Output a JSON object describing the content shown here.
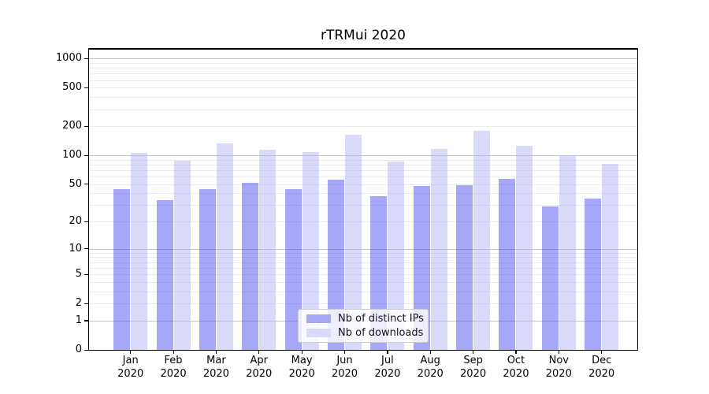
{
  "chart_data": {
    "type": "bar",
    "title": "rTRMui 2020",
    "categories": [
      "Jan 2020",
      "Feb 2020",
      "Mar 2020",
      "Apr 2020",
      "May 2020",
      "Jun 2020",
      "Jul 2020",
      "Aug 2020",
      "Sep 2020",
      "Oct 2020",
      "Nov 2020",
      "Dec 2020"
    ],
    "x_tick_month": [
      "Jan",
      "Feb",
      "Mar",
      "Apr",
      "May",
      "Jun",
      "Jul",
      "Aug",
      "Sep",
      "Oct",
      "Nov",
      "Dec"
    ],
    "x_tick_year": "2020",
    "series": [
      {
        "name": "Nb of distinct IPs",
        "color_fill": "rgba(80,80,245,0.5)",
        "color_legend": "#a7a7fa",
        "values": [
          44,
          34,
          44,
          52,
          44,
          56,
          37,
          48,
          49,
          57,
          29,
          35
        ]
      },
      {
        "name": "Nb of downloads",
        "color_fill": "rgba(180,180,245,0.5)",
        "color_legend": "#d9d9fa",
        "values": [
          106,
          88,
          133,
          115,
          108,
          162,
          86,
          116,
          179,
          126,
          98,
          81
        ]
      }
    ],
    "y_scale": "log1p",
    "ylim": [
      0,
      1260
    ],
    "y_ticks": [
      0,
      1,
      2,
      5,
      10,
      20,
      50,
      100,
      200,
      500,
      1000
    ],
    "y_gridlines_major": [
      1,
      10,
      100,
      1000
    ],
    "y_gridlines_minor": [
      2,
      3,
      4,
      5,
      6,
      7,
      8,
      9,
      20,
      30,
      40,
      50,
      60,
      70,
      80,
      90,
      200,
      300,
      400,
      500,
      600,
      700,
      800,
      900
    ],
    "legend_position": "lower center",
    "grid": "on"
  },
  "colors": {
    "grid_major": "#c6c6c6",
    "grid_minor": "#ebebeb",
    "axis": "#000000",
    "legend_border": "#cccccc"
  }
}
